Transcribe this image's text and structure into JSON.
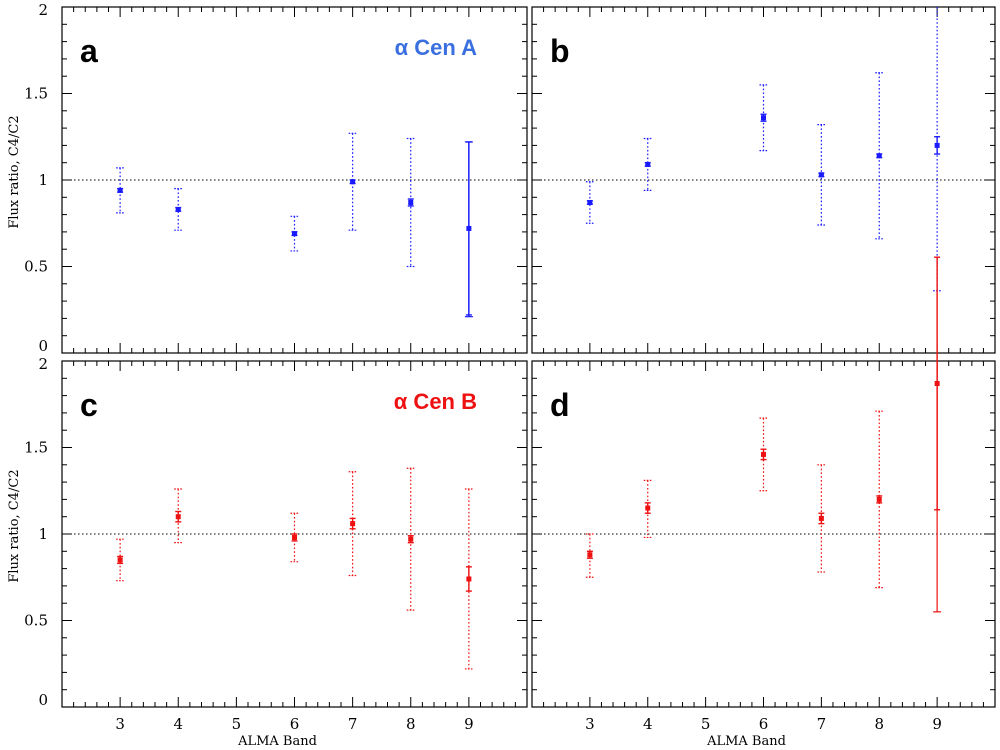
{
  "colors": {
    "alpha_cen_a": "#1a1aff",
    "alpha_cen_a_label": "#3a6fe0",
    "alpha_cen_b": "#ee1111"
  },
  "chart_data": [
    {
      "type": "scatter",
      "panel": "a",
      "star_label": "α Cen A",
      "color_key": "alpha_cen_a",
      "ylabel": "Flux ratio, C4/C2",
      "xlabel": "",
      "ylim": [
        0,
        2
      ],
      "xlim": [
        2,
        10
      ],
      "reference_line": 1,
      "x_ticks": [],
      "y_ticks": [
        "0",
        "0.5",
        "1",
        "1.5",
        "2"
      ],
      "points": [
        {
          "x": 3,
          "y": 0.94,
          "err": 0.01,
          "sys": [
            0.81,
            1.07
          ],
          "solid": false
        },
        {
          "x": 4,
          "y": 0.83,
          "err": 0.01,
          "sys": [
            0.71,
            0.95
          ],
          "solid": false
        },
        {
          "x": 6,
          "y": 0.69,
          "err": 0.01,
          "sys": [
            0.59,
            0.79
          ],
          "solid": false
        },
        {
          "x": 7,
          "y": 0.99,
          "err": 0.01,
          "sys": [
            0.71,
            1.27
          ],
          "solid": false
        },
        {
          "x": 8,
          "y": 0.87,
          "err": 0.02,
          "sys": [
            0.5,
            1.24
          ],
          "solid": false
        },
        {
          "x": 9,
          "y": 0.72,
          "err": 0.5,
          "sys": [
            0.21,
            1.22
          ],
          "solid": true
        }
      ]
    },
    {
      "type": "scatter",
      "panel": "b",
      "star_label": "",
      "color_key": "alpha_cen_a",
      "ylabel": "",
      "xlabel": "",
      "ylim": [
        0,
        2
      ],
      "xlim": [
        2,
        10
      ],
      "reference_line": 1,
      "x_ticks": [],
      "y_ticks": [],
      "points": [
        {
          "x": 3,
          "y": 0.87,
          "err": 0.01,
          "sys": [
            0.75,
            0.99
          ],
          "solid": false
        },
        {
          "x": 4,
          "y": 1.09,
          "err": 0.01,
          "sys": [
            0.94,
            1.24
          ],
          "solid": false
        },
        {
          "x": 6,
          "y": 1.36,
          "err": 0.02,
          "sys": [
            1.17,
            1.55
          ],
          "solid": false
        },
        {
          "x": 7,
          "y": 1.03,
          "err": 0.01,
          "sys": [
            0.74,
            1.32
          ],
          "solid": false
        },
        {
          "x": 8,
          "y": 1.14,
          "err": 0.01,
          "sys": [
            0.66,
            1.62
          ],
          "solid": false
        },
        {
          "x": 9,
          "y": 1.2,
          "err": 0.05,
          "sys": [
            0.36,
            2.0
          ],
          "solid": false
        }
      ]
    },
    {
      "type": "scatter",
      "panel": "c",
      "star_label": "α Cen B",
      "color_key": "alpha_cen_b",
      "ylabel": "Flux ratio, C4/C2",
      "xlabel": "ALMA Band",
      "ylim": [
        0,
        2
      ],
      "xlim": [
        2,
        10
      ],
      "reference_line": 1,
      "x_ticks": [
        "3",
        "4",
        "5",
        "6",
        "7",
        "8",
        "9"
      ],
      "y_ticks": [
        "0",
        "0.5",
        "1",
        "1.5",
        "2"
      ],
      "points": [
        {
          "x": 3,
          "y": 0.85,
          "err": 0.02,
          "sys": [
            0.73,
            0.97
          ],
          "solid": false
        },
        {
          "x": 4,
          "y": 1.1,
          "err": 0.03,
          "sys": [
            0.95,
            1.26
          ],
          "solid": false
        },
        {
          "x": 6,
          "y": 0.98,
          "err": 0.02,
          "sys": [
            0.84,
            1.12
          ],
          "solid": false
        },
        {
          "x": 7,
          "y": 1.06,
          "err": 0.03,
          "sys": [
            0.76,
            1.36
          ],
          "solid": false
        },
        {
          "x": 8,
          "y": 0.97,
          "err": 0.02,
          "sys": [
            0.56,
            1.38
          ],
          "solid": false
        },
        {
          "x": 9,
          "y": 0.74,
          "err": 0.07,
          "sys": [
            0.22,
            1.26
          ],
          "solid": false
        }
      ]
    },
    {
      "type": "scatter",
      "panel": "d",
      "star_label": "",
      "color_key": "alpha_cen_b",
      "ylabel": "",
      "xlabel": "ALMA Band",
      "ylim": [
        0,
        2
      ],
      "xlim": [
        2,
        10
      ],
      "reference_line": 1,
      "x_ticks": [
        "3",
        "4",
        "5",
        "6",
        "7",
        "8",
        "9"
      ],
      "y_ticks": [],
      "points": [
        {
          "x": 3,
          "y": 0.88,
          "err": 0.02,
          "sys": [
            0.75,
            1.0
          ],
          "solid": false
        },
        {
          "x": 4,
          "y": 1.15,
          "err": 0.03,
          "sys": [
            0.98,
            1.31
          ],
          "solid": false
        },
        {
          "x": 6,
          "y": 1.46,
          "err": 0.03,
          "sys": [
            1.25,
            1.67
          ],
          "solid": false
        },
        {
          "x": 7,
          "y": 1.09,
          "err": 0.03,
          "sys": [
            0.78,
            1.4
          ],
          "solid": false
        },
        {
          "x": 8,
          "y": 1.2,
          "err": 0.02,
          "sys": [
            0.69,
            1.71
          ],
          "solid": false
        },
        {
          "x": 9,
          "y": 1.87,
          "err": 0.73,
          "sys": [
            0.55,
            2.0
          ],
          "solid": true
        }
      ]
    }
  ]
}
